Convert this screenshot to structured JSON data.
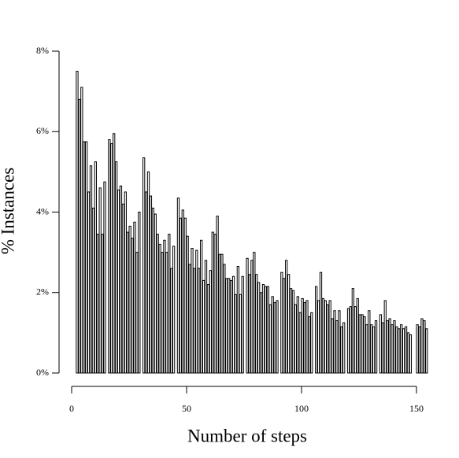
{
  "chart_data": {
    "type": "bar",
    "xlabel": "Number of steps",
    "ylabel": "% Instances",
    "x": [
      2,
      3,
      4,
      5,
      6,
      7,
      8,
      9,
      10,
      11,
      12,
      13,
      14,
      15,
      16,
      17,
      18,
      19,
      20,
      21,
      22,
      23,
      24,
      25,
      26,
      27,
      28,
      29,
      30,
      31,
      32,
      33,
      34,
      35,
      36,
      37,
      38,
      39,
      40,
      41,
      42,
      43,
      44,
      45,
      46,
      47,
      48,
      49,
      50,
      51,
      52,
      53,
      54,
      55,
      56,
      57,
      58,
      59,
      60,
      61,
      62,
      63,
      64,
      65,
      66,
      67,
      68,
      69,
      70,
      71,
      72,
      73,
      74,
      75,
      76,
      77,
      78,
      79,
      80,
      81,
      82,
      83,
      84,
      85,
      86,
      87,
      88,
      89,
      90,
      91,
      92,
      93,
      94,
      95,
      96,
      97,
      98,
      99,
      100,
      101,
      102,
      103,
      104,
      105,
      106,
      107,
      108,
      109,
      110,
      111,
      112,
      113,
      114,
      115,
      116,
      117,
      118,
      119,
      120,
      121,
      122,
      123,
      124,
      125,
      126,
      127,
      128,
      129,
      130,
      131,
      132,
      133,
      134,
      135,
      136,
      137,
      138,
      139,
      140,
      141,
      142,
      143,
      144,
      145,
      146,
      147,
      148,
      149,
      150,
      151,
      152,
      153,
      154
    ],
    "values": [
      7.5,
      6.8,
      7.1,
      5.75,
      5.75,
      4.5,
      5.15,
      4.1,
      5.25,
      3.45,
      4.6,
      3.45,
      4.75,
      0,
      5.8,
      5.7,
      5.95,
      5.25,
      4.55,
      4.65,
      4.2,
      4.5,
      3.5,
      3.65,
      3.35,
      3.75,
      3.0,
      4.0,
      0,
      5.35,
      4.5,
      5.0,
      4.4,
      4.1,
      3.95,
      3.45,
      3.2,
      3.0,
      3.3,
      3.0,
      3.45,
      2.6,
      3.15,
      0,
      4.35,
      3.85,
      4.05,
      3.85,
      3.4,
      2.7,
      3.1,
      2.6,
      3.05,
      2.6,
      3.3,
      2.3,
      2.8,
      2.2,
      2.55,
      3.5,
      3.45,
      3.9,
      2.95,
      2.95,
      2.7,
      2.35,
      2.35,
      2.3,
      2.4,
      1.95,
      2.65,
      1.95,
      2.4,
      0,
      2.85,
      2.45,
      2.8,
      3.0,
      2.45,
      2.25,
      2.0,
      2.2,
      2.15,
      2.15,
      1.7,
      1.9,
      1.75,
      1.8,
      0,
      2.5,
      2.35,
      2.8,
      2.45,
      2.1,
      2.05,
      1.7,
      1.9,
      1.5,
      1.85,
      1.75,
      1.8,
      1.4,
      1.5,
      0,
      2.15,
      1.8,
      2.5,
      1.85,
      1.8,
      1.7,
      1.8,
      1.35,
      1.55,
      1.3,
      1.55,
      1.15,
      1.25,
      0,
      1.6,
      1.65,
      2.1,
      1.65,
      1.85,
      1.45,
      1.45,
      1.4,
      1.2,
      1.55,
      1.2,
      1.15,
      1.3,
      0,
      1.45,
      1.25,
      1.8,
      1.3,
      1.35,
      1.2,
      1.3,
      1.15,
      1.1,
      1.2,
      1.1,
      1.15,
      1.0,
      0.95,
      0,
      0,
      1.2,
      1.15,
      1.35,
      1.3,
      1.1
    ],
    "color": "#ffffff",
    "xlim": [
      0,
      150
    ],
    "xticks": [
      0,
      50,
      100,
      150
    ],
    "ylim": [
      0,
      8
    ],
    "yticks": [
      {
        "value": 0,
        "label": "0%"
      },
      {
        "value": 2,
        "label": "2%"
      },
      {
        "value": 4,
        "label": "4%"
      },
      {
        "value": 6,
        "label": "6%"
      },
      {
        "value": 8,
        "label": "8%"
      }
    ]
  }
}
